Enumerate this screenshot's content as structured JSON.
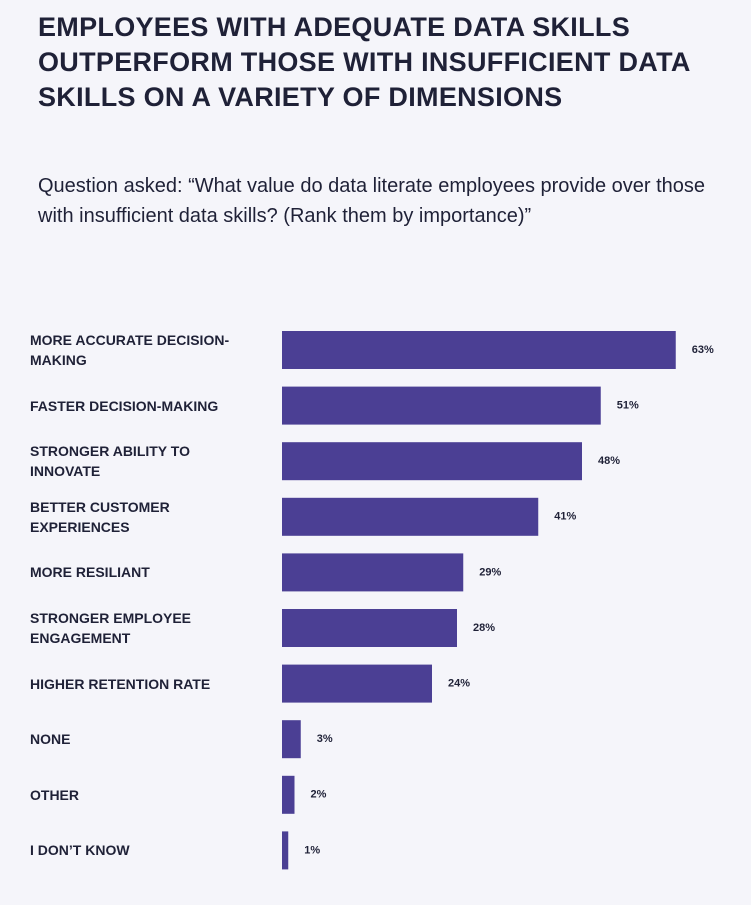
{
  "chart_data": {
    "type": "bar",
    "orientation": "horizontal",
    "title": "EMPLOYEES WITH ADEQUATE DATA SKILLS OUTPERFORM THOSE WITH INSUFFICIENT DATA SKILLS ON A VARIETY OF DIMENSIONS",
    "subtitle": "Question asked: “What value do data literate employees provide over those with insufficient data skills? (Rank them by importance)”",
    "categories": [
      "MORE ACCURATE DECISION-MAKING",
      "FASTER DECISION-MAKING",
      "STRONGER ABILITY TO INNOVATE",
      "BETTER CUSTOMER EXPERIENCES",
      "MORE RESILIANT",
      "STRONGER EMPLOYEE ENGAGEMENT",
      "HIGHER RETENTION RATE",
      "NONE",
      "OTHER",
      "I DON’T KNOW"
    ],
    "values": [
      63,
      51,
      48,
      41,
      29,
      28,
      24,
      3,
      2,
      1
    ],
    "value_labels": [
      "63%",
      "51%",
      "48%",
      "41%",
      "29%",
      "28%",
      "24%",
      "3%",
      "2%",
      "1%"
    ],
    "color": "#4b3f94"
  }
}
